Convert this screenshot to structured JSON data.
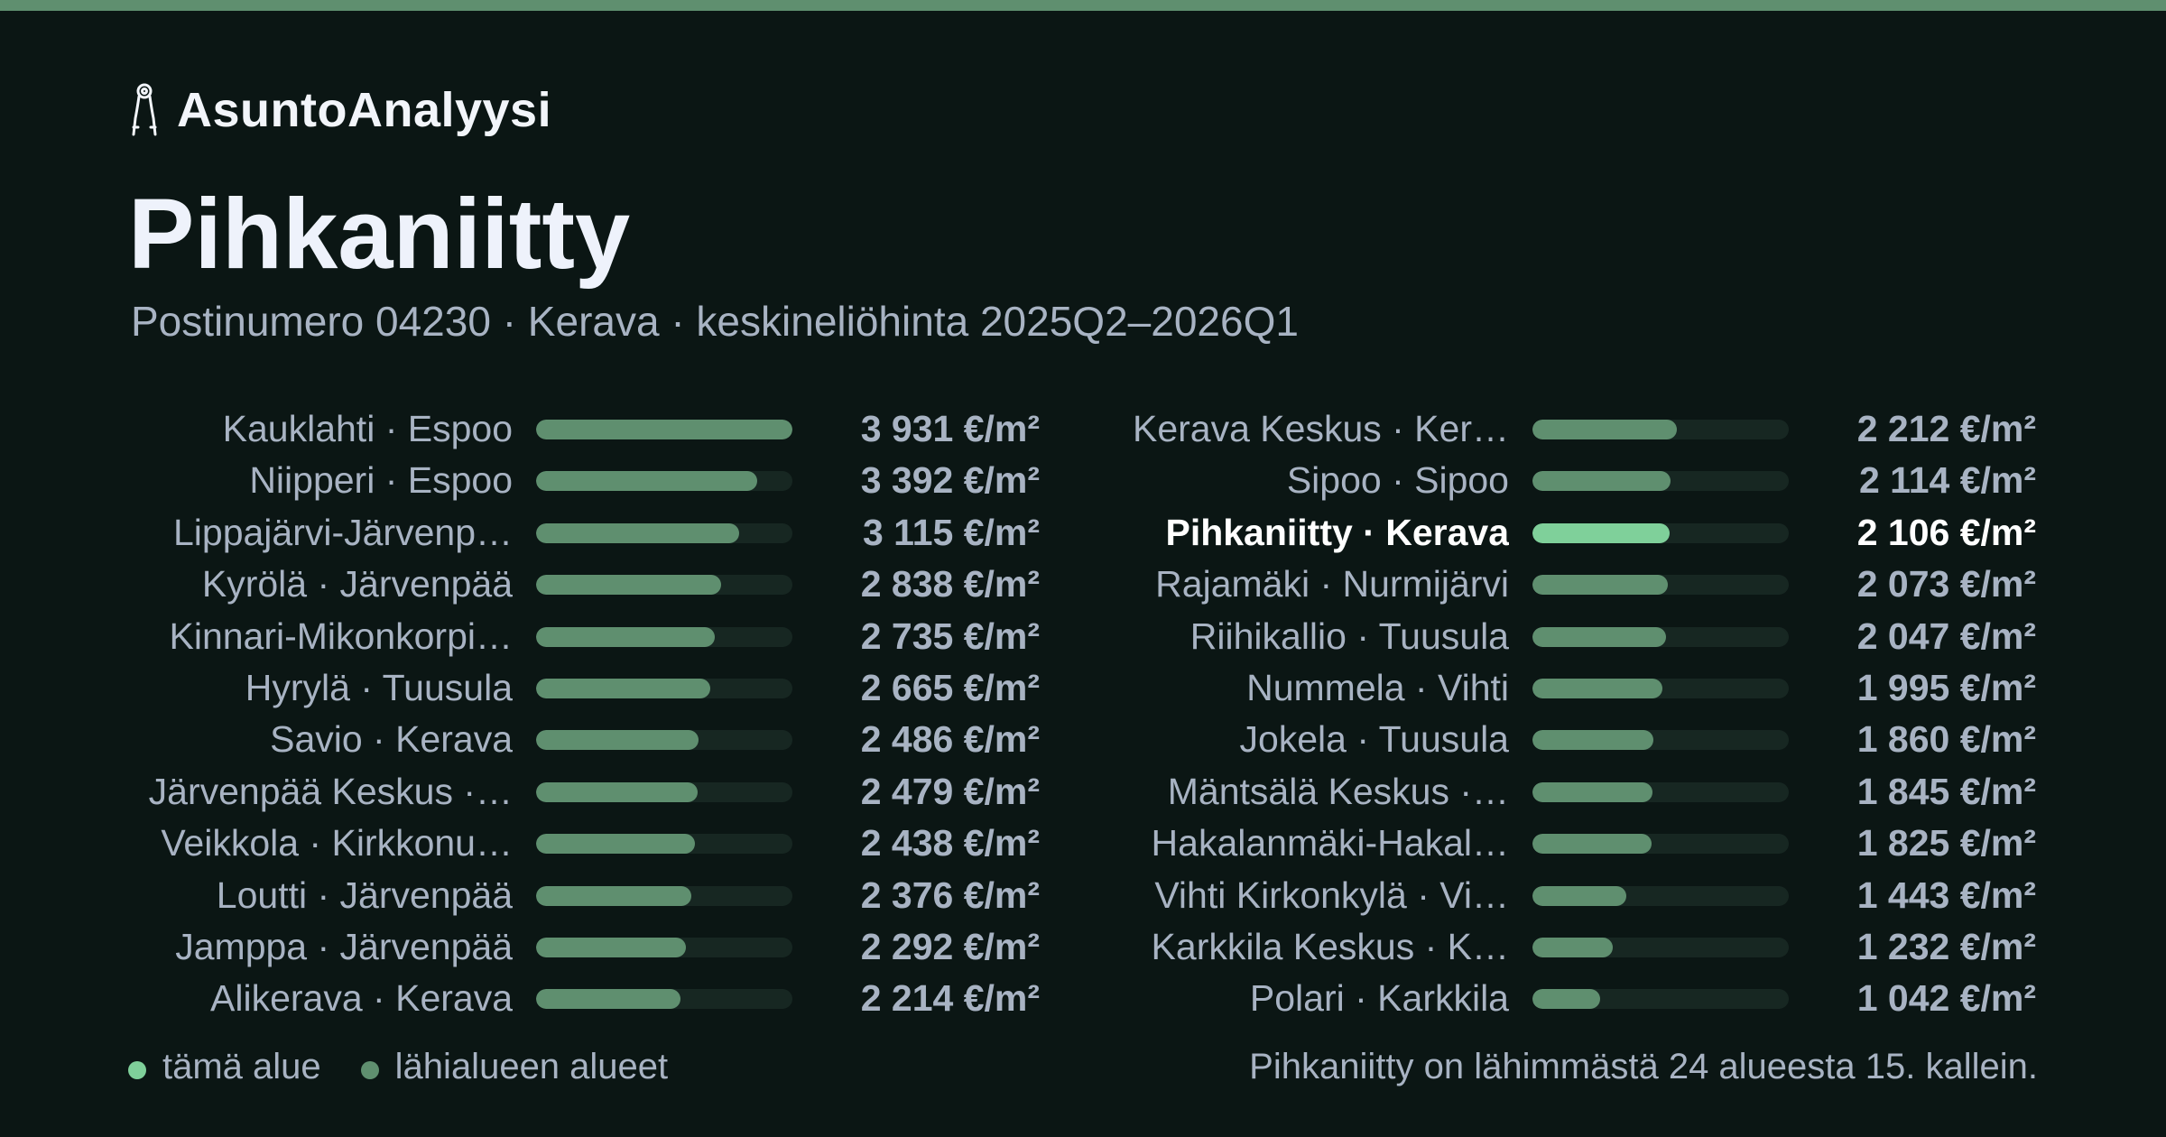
{
  "brand": {
    "name": "AsuntoAnalyysi",
    "icon": "key-ring-icon"
  },
  "header": {
    "title": "Pihkaniitty",
    "subtitle": "Postinumero 04230 · Kerava · keskineliöhinta 2025Q2–2026Q1"
  },
  "colors": {
    "background": "#0b1614",
    "accent": "#5f8f6f",
    "highlight": "#7fd09a",
    "text_muted": "#a8b3c3"
  },
  "chart_data": {
    "type": "bar",
    "orientation": "horizontal",
    "unit": "€/m²",
    "max": 3931,
    "highlight": "Pihkaniitty · Kerava",
    "categories": [
      "Kauklahti · Espoo",
      "Niipperi · Espoo",
      "Lippajärvi-Järvenp…",
      "Kyrölä · Järvenpää",
      "Kinnari-Mikonkorpi…",
      "Hyrylä · Tuusula",
      "Savio · Kerava",
      "Järvenpää Keskus ·…",
      "Veikkola · Kirkkonu…",
      "Loutti · Järvenpää",
      "Jamppa · Järvenpää",
      "Alikerava · Kerava",
      "Kerava Keskus · Ker…",
      "Sipoo · Sipoo",
      "Pihkaniitty · Kerava",
      "Rajamäki · Nurmijärvi",
      "Riihikallio · Tuusula",
      "Nummela · Vihti",
      "Jokela · Tuusula",
      "Mäntsälä Keskus ·…",
      "Hakalanmäki-Hakal…",
      "Vihti Kirkonkylä · Vi…",
      "Karkkila Keskus · K…",
      "Polari · Karkkila"
    ],
    "values": [
      3931,
      3392,
      3115,
      2838,
      2735,
      2665,
      2486,
      2479,
      2438,
      2376,
      2292,
      2214,
      2212,
      2114,
      2106,
      2073,
      2047,
      1995,
      1860,
      1845,
      1825,
      1443,
      1232,
      1042
    ],
    "value_labels": [
      "3 931 €/m²",
      "3 392 €/m²",
      "3 115 €/m²",
      "2 838 €/m²",
      "2 735 €/m²",
      "2 665 €/m²",
      "2 486 €/m²",
      "2 479 €/m²",
      "2 438 €/m²",
      "2 376 €/m²",
      "2 292 €/m²",
      "2 214 €/m²",
      "2 212 €/m²",
      "2 114 €/m²",
      "2 106 €/m²",
      "2 073 €/m²",
      "2 047 €/m²",
      "1 995 €/m²",
      "1 860 €/m²",
      "1 845 €/m²",
      "1 825 €/m²",
      "1 443 €/m²",
      "1 232 €/m²",
      "1 042 €/m²"
    ]
  },
  "legend": {
    "this_area": "tämä alue",
    "nearby": "lähialueen alueet"
  },
  "footnote": "Pihkaniitty on lähimmästä 24 alueesta 15. kallein."
}
